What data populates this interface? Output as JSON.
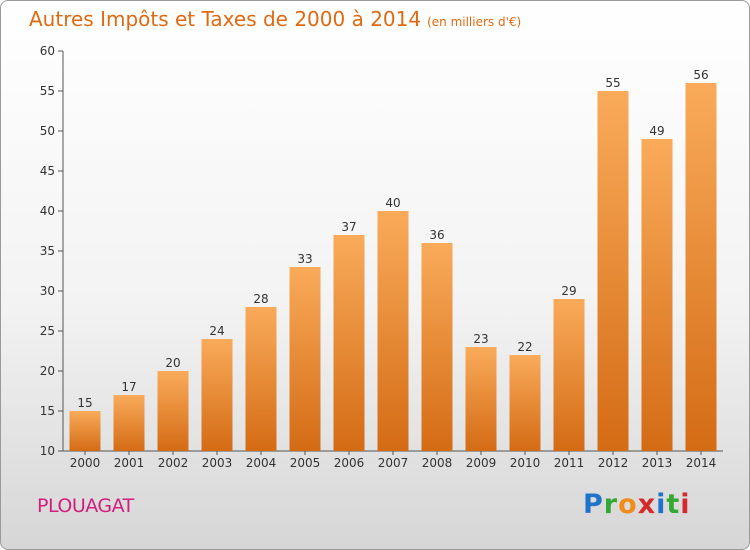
{
  "title": "Autres Impôts et Taxes de 2000 à 2014",
  "subtitle": "(en milliers d'€)",
  "location": "PLOUAGAT",
  "brand": {
    "letters": [
      {
        "ch": "P",
        "color": "#1f73c8"
      },
      {
        "ch": "r",
        "color": "#33a833"
      },
      {
        "ch": "o",
        "color": "#f08c1a"
      },
      {
        "ch": "x",
        "color": "#d42a2a"
      },
      {
        "ch": "i",
        "color": "#1f73c8"
      },
      {
        "ch": "t",
        "color": "#33a833"
      },
      {
        "ch": "i",
        "color": "#d42a2a"
      }
    ]
  },
  "colors": {
    "title": "#e06a12",
    "location": "#d01f7e",
    "bar_top": "#f9ab5a",
    "bar_bottom": "#d46b15"
  },
  "chart_data": {
    "type": "bar",
    "title": "Autres Impôts et Taxes de 2000 à 2014",
    "subtitle": "(en milliers d'€)",
    "categories": [
      "2000",
      "2001",
      "2002",
      "2003",
      "2004",
      "2005",
      "2006",
      "2007",
      "2008",
      "2009",
      "2010",
      "2011",
      "2012",
      "2013",
      "2014"
    ],
    "values": [
      15,
      17,
      20,
      24,
      28,
      33,
      37,
      40,
      36,
      23,
      22,
      29,
      55,
      49,
      56
    ],
    "ylim": [
      10,
      60
    ],
    "yticks": [
      10,
      15,
      20,
      25,
      30,
      35,
      40,
      45,
      50,
      55,
      60
    ],
    "grid": false,
    "legend": "none",
    "data_labels": true
  }
}
